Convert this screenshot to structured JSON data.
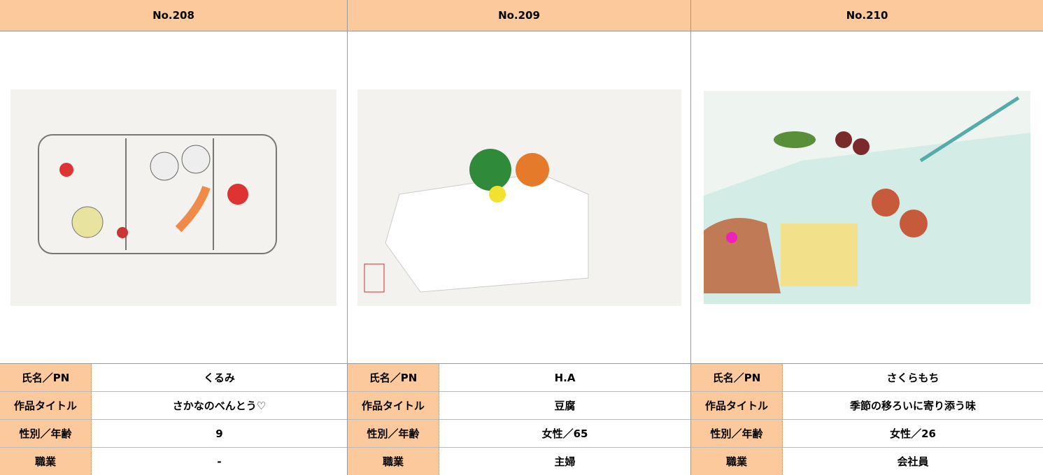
{
  "entries": [
    {
      "number": "No.208",
      "rows": [
        [
          "氏名／PN",
          "くるみ"
        ],
        [
          "作品タイトル",
          "さかなのべんとう♡"
        ],
        [
          "性別／年齢",
          "9"
        ],
        [
          "職業",
          "-"
        ]
      ]
    },
    {
      "number": "No.209",
      "rows": [
        [
          "氏名／PN",
          "H.A"
        ],
        [
          "作品タイトル",
          "豆腐"
        ],
        [
          "性別／年齢",
          "女性／65"
        ],
        [
          "職業",
          "主婦"
        ]
      ]
    },
    {
      "number": "No.210",
      "rows": [
        [
          "氏名／PN",
          "さくらもち"
        ],
        [
          "作品タイトル",
          "季節の移ろいに寄り添う味"
        ],
        [
          "性別／年齢",
          "女性／26"
        ],
        [
          "職業",
          "会社員"
        ]
      ]
    }
  ]
}
